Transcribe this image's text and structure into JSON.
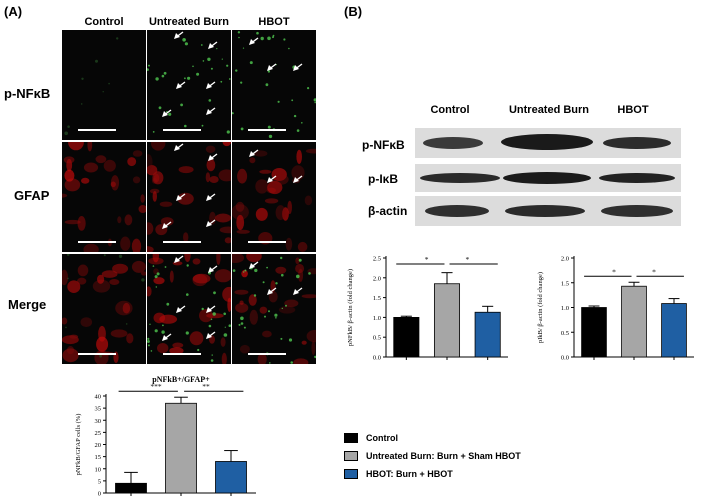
{
  "panel_a": {
    "label": "(A)",
    "columns": [
      "Control",
      "Untreated Burn",
      "HBOT"
    ],
    "rows": [
      "p-NFκB",
      "GFAP",
      "Merge"
    ]
  },
  "panel_b": {
    "label": "(B)",
    "columns": [
      "Control",
      "Untreated Burn",
      "HBOT"
    ],
    "bands": [
      "p-NFκB",
      "p-IκB",
      "β-actin"
    ]
  },
  "legend": {
    "items": [
      {
        "label": "Control",
        "color": "#000000"
      },
      {
        "label": "Untreated Burn: Burn + Sham HBOT",
        "color": "#a6a6a6"
      },
      {
        "label": "HBOT: Burn + HBOT",
        "color": "#1f5fa3"
      }
    ]
  },
  "chart_data": [
    {
      "type": "bar",
      "title": "pNFkB+/GFAP+",
      "ylabel": "pNFkB/GFAP  cells (%)",
      "xlabel": "",
      "categories": [
        "Control",
        "Untreated Burn",
        "HBOT"
      ],
      "values": [
        4,
        37,
        13
      ],
      "errors": [
        4.5,
        2.5,
        4.5
      ],
      "colors": [
        "#000000",
        "#a6a6a6",
        "#1f5fa3"
      ],
      "ylim": [
        0,
        40
      ],
      "yticks": [
        "0",
        "5",
        "10",
        "15",
        "20",
        "25",
        "30",
        "35",
        "40"
      ],
      "significance": [
        {
          "from": 0,
          "to": 1,
          "label": "***"
        },
        {
          "from": 1,
          "to": 2,
          "label": "**"
        }
      ]
    },
    {
      "type": "bar",
      "title": "",
      "ylabel": "pNFkB/ β-actin (fold change)",
      "xlabel": "",
      "categories": [
        "Control",
        "Untreated Burn",
        "HBOT"
      ],
      "values": [
        1.0,
        1.85,
        1.13
      ],
      "errors": [
        0.03,
        0.28,
        0.15
      ],
      "colors": [
        "#000000",
        "#a6a6a6",
        "#1f5fa3"
      ],
      "ylim": [
        0,
        2.5
      ],
      "yticks": [
        "0.0",
        "0.5",
        "1.0",
        "1.5",
        "2.0",
        "2.5"
      ],
      "significance": [
        {
          "from": 0,
          "to": 1,
          "label": "*"
        },
        {
          "from": 1,
          "to": 2,
          "label": "*"
        }
      ]
    },
    {
      "type": "bar",
      "title": "",
      "ylabel": "pIkB/ β-actin (fold change)",
      "xlabel": "",
      "categories": [
        "Control",
        "Untreated Burn",
        "HBOT"
      ],
      "values": [
        1.0,
        1.43,
        1.08
      ],
      "errors": [
        0.03,
        0.08,
        0.1
      ],
      "colors": [
        "#000000",
        "#a6a6a6",
        "#1f5fa3"
      ],
      "ylim": [
        0,
        2.0
      ],
      "yticks": [
        "0.0",
        "0.5",
        "1.0",
        "1.5",
        "2.0"
      ],
      "significance": [
        {
          "from": 0,
          "to": 1,
          "label": "*"
        },
        {
          "from": 1,
          "to": 2,
          "label": "*"
        }
      ]
    }
  ]
}
